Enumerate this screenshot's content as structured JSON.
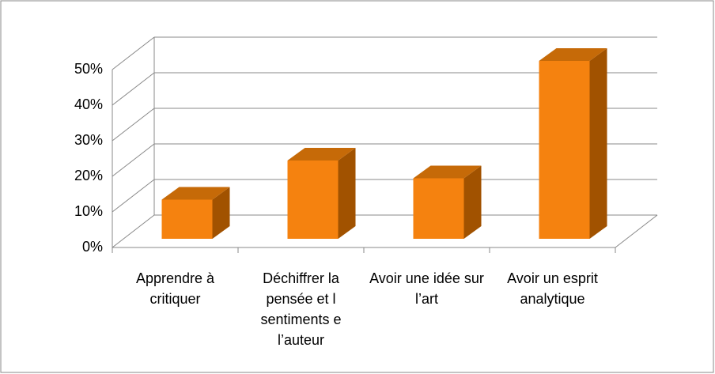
{
  "chart_data": {
    "type": "bar3d",
    "categories": [
      "Apprendre à critiquer",
      "Déchiffrer la pensée et l sentiments e l’auteur",
      "Avoir une idée sur l’art",
      "Avoir un esprit analytique"
    ],
    "values": [
      11,
      22,
      17,
      50
    ],
    "color": "#f5820f",
    "ylim": [
      0,
      50
    ],
    "yticks": [
      {
        "value": 0,
        "label": "0%"
      },
      {
        "value": 10,
        "label": "10%"
      },
      {
        "value": 20,
        "label": "20%"
      },
      {
        "value": 30,
        "label": "30%"
      },
      {
        "value": 40,
        "label": "40%"
      },
      {
        "value": 50,
        "label": "50%"
      }
    ],
    "grid": true
  }
}
